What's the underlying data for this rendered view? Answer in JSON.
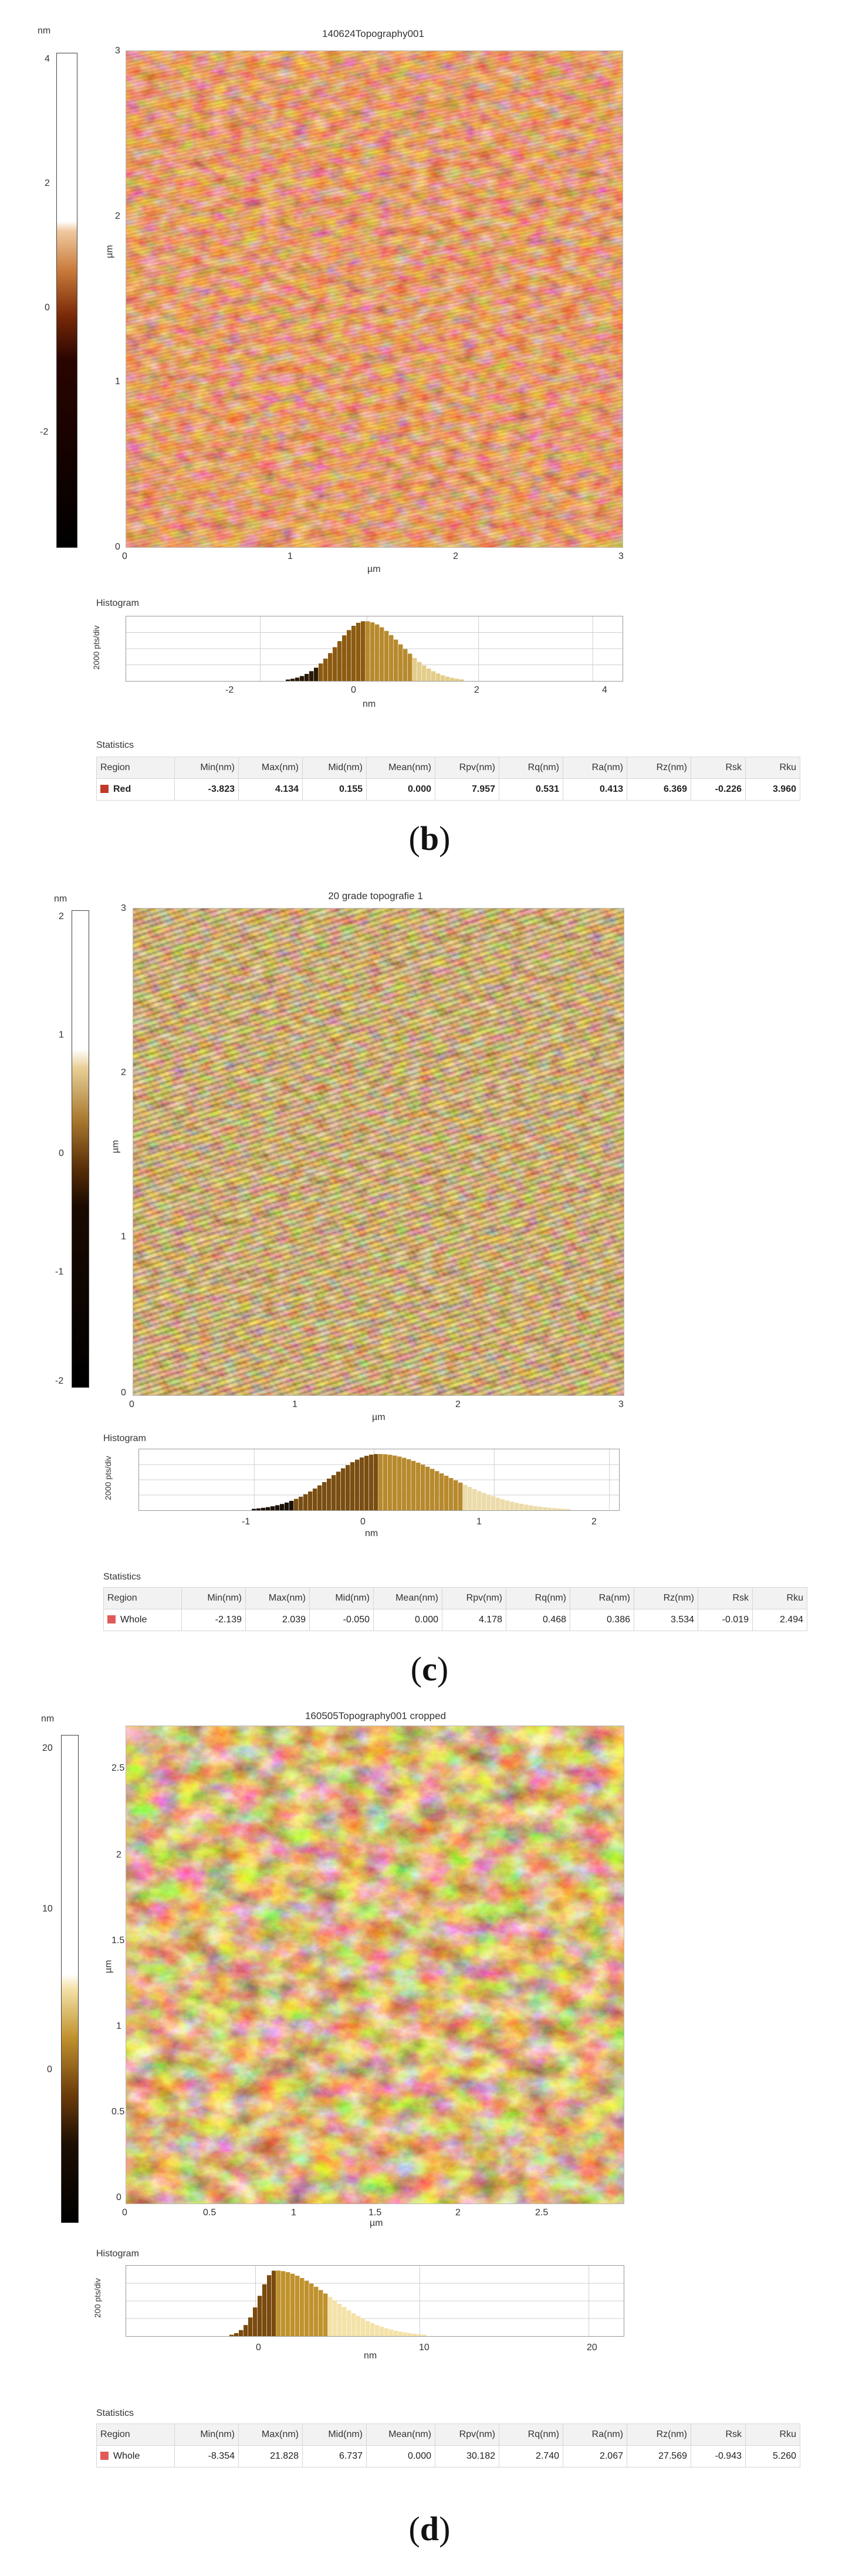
{
  "panels": [
    {
      "id": "b",
      "caption_letter": "b",
      "image_title": "140624Topography001",
      "colorbar_unit": "nm",
      "colorbar_ticks": [
        "4",
        "2",
        "0",
        "-2"
      ],
      "y_axis_label": "µm",
      "y_ticks": [
        "3",
        "2",
        "1",
        "0"
      ],
      "x_axis_label": "µm",
      "x_ticks": [
        "0",
        "1",
        "2",
        "3"
      ],
      "histogram_title": "Histogram",
      "histogram_ylabel": "2000 pts/div",
      "histogram_xlabel": "nm",
      "histogram_ticks": [
        "-2",
        "0",
        "2",
        "4"
      ],
      "stats_title": "Statistics",
      "stats_headers": [
        "Region",
        "Min(nm)",
        "Max(nm)",
        "Mid(nm)",
        "Mean(nm)",
        "Rpv(nm)",
        "Rq(nm)",
        "Ra(nm)",
        "Rz(nm)",
        "Rsk",
        "Rku"
      ],
      "stats_row": [
        "Red",
        "-3.823",
        "4.134",
        "0.155",
        "0.000",
        "7.957",
        "0.531",
        "0.413",
        "6.369",
        "-0.226",
        "3.960"
      ],
      "swatch_color": "#c0392b",
      "palette": [
        "#6a1804",
        "#9c3512",
        "#c0571e",
        "#e0874f",
        "#f7b39a"
      ],
      "hist_colors": [
        "#2a1a05",
        "#8c5a10",
        "#b88a2e",
        "#e3cd8a"
      ]
    },
    {
      "id": "c",
      "caption_letter": "c",
      "image_title": "20 grade topografie 1",
      "colorbar_unit": "nm",
      "colorbar_ticks": [
        "2",
        "1",
        "0",
        "-1",
        "-2"
      ],
      "y_axis_label": "µm",
      "y_ticks": [
        "3",
        "2",
        "1",
        "0"
      ],
      "x_axis_label": "µm",
      "x_ticks": [
        "0",
        "1",
        "2",
        "3"
      ],
      "histogram_title": "Histogram",
      "histogram_ylabel": "2000 pts/div",
      "histogram_xlabel": "nm",
      "histogram_ticks": [
        "-1",
        "0",
        "1",
        "2"
      ],
      "stats_title": "Statistics",
      "stats_headers": [
        "Region",
        "Min(nm)",
        "Max(nm)",
        "Mid(nm)",
        "Mean(nm)",
        "Rpv(nm)",
        "Rq(nm)",
        "Ra(nm)",
        "Rz(nm)",
        "Rsk",
        "Rku"
      ],
      "stats_row": [
        "Whole",
        "-2.139",
        "2.039",
        "-0.050",
        "0.000",
        "4.178",
        "0.468",
        "0.386",
        "3.534",
        "-0.019",
        "2.494"
      ],
      "swatch_color": "#e05a5a",
      "palette": [
        "#4a2406",
        "#7a4a14",
        "#a8782e",
        "#c9a25a",
        "#e8cf96"
      ],
      "hist_colors": [
        "#1c1205",
        "#7a4e12",
        "#b88a2e",
        "#ecdcaa"
      ]
    },
    {
      "id": "d",
      "caption_letter": "d",
      "image_title": "160505Topography001 cropped",
      "colorbar_unit": "nm",
      "colorbar_ticks": [
        "20",
        "10",
        "0"
      ],
      "y_axis_label": "µm",
      "y_ticks": [
        "2.5",
        "2",
        "1.5",
        "1",
        "0.5",
        "0"
      ],
      "x_axis_label": "µm",
      "x_ticks": [
        "0",
        "0.5",
        "1",
        "1.5",
        "2",
        "2.5"
      ],
      "histogram_title": "Histogram",
      "histogram_ylabel": "200 pts/div",
      "histogram_xlabel": "nm",
      "histogram_ticks": [
        "0",
        "10",
        "20"
      ],
      "stats_title": "Statistics",
      "stats_headers": [
        "Region",
        "Min(nm)",
        "Max(nm)",
        "Mid(nm)",
        "Mean(nm)",
        "Rpv(nm)",
        "Rq(nm)",
        "Ra(nm)",
        "Rz(nm)",
        "Rsk",
        "Rku"
      ],
      "stats_row": [
        "Whole",
        "-8.354",
        "21.828",
        "6.737",
        "0.000",
        "30.182",
        "2.740",
        "2.067",
        "27.569",
        "-0.943",
        "5.260"
      ],
      "swatch_color": "#e05a5a",
      "palette": [
        "#2b1404",
        "#6b3a0a",
        "#a06a1c",
        "#d4a84a",
        "#fff4d6"
      ],
      "hist_colors": [
        "#1c0e02",
        "#7a4a0e",
        "#c0922e",
        "#f4e2a8"
      ]
    }
  ]
}
